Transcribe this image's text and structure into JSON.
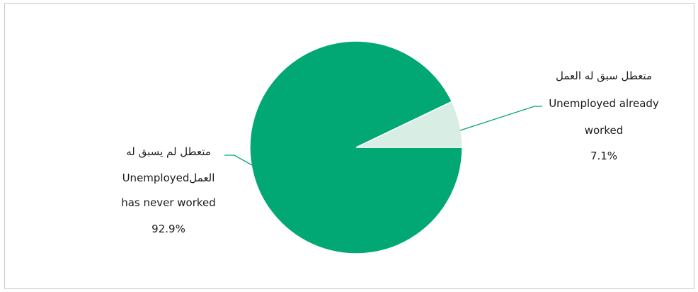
{
  "chart_data": {
    "type": "pie",
    "slices": [
      {
        "label_lines": [
          "متعطل سبق له العمل",
          "Unemployed already",
          "worked",
          "7.1%"
        ],
        "value": 7.1,
        "color": "#d8ede3"
      },
      {
        "label_lines": [
          "متعطل لم يسبق له",
          "العملUnemployed",
          "has never worked",
          "92.9%"
        ],
        "value": 92.9,
        "color": "#02a874"
      }
    ],
    "leader_line_color": "#02a874",
    "start_angle_deg": 0,
    "direction": "counterclockwise",
    "title": "",
    "legend": "none"
  }
}
